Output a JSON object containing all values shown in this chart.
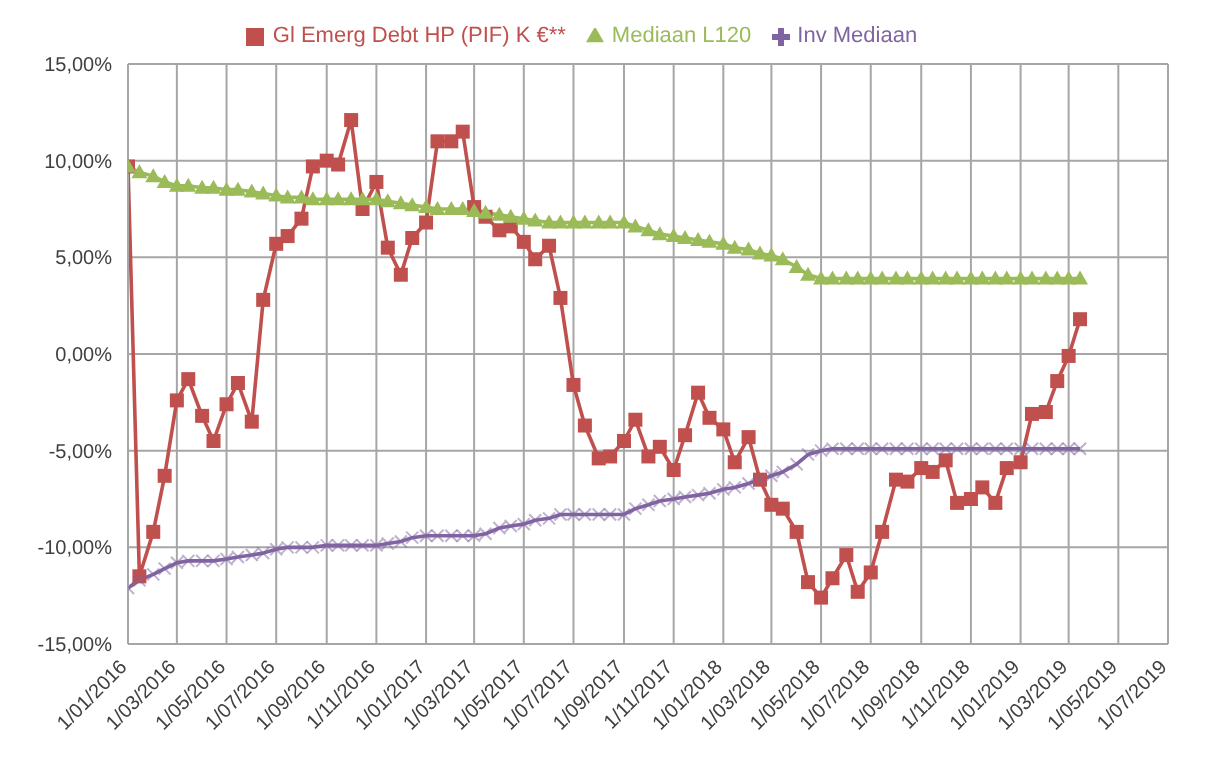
{
  "chart_data": {
    "type": "line",
    "legend": "top",
    "grid": true,
    "line_style": "solid",
    "x": [
      "2016-01-01",
      "2016-01-15",
      "2016-02-01",
      "2016-02-15",
      "2016-03-01",
      "2016-03-15",
      "2016-04-01",
      "2016-04-15",
      "2016-05-01",
      "2016-05-15",
      "2016-06-01",
      "2016-06-15",
      "2016-07-01",
      "2016-07-15",
      "2016-08-01",
      "2016-08-15",
      "2016-09-01",
      "2016-09-15",
      "2016-10-01",
      "2016-10-15",
      "2016-11-01",
      "2016-11-15",
      "2016-12-01",
      "2016-12-15",
      "2017-01-01",
      "2017-01-15",
      "2017-02-01",
      "2017-02-15",
      "2017-03-01",
      "2017-03-15",
      "2017-04-01",
      "2017-04-15",
      "2017-05-01",
      "2017-05-15",
      "2017-06-01",
      "2017-06-15",
      "2017-07-01",
      "2017-07-15",
      "2017-08-01",
      "2017-08-15",
      "2017-09-01",
      "2017-09-15",
      "2017-10-01",
      "2017-10-15",
      "2017-11-01",
      "2017-11-15",
      "2017-12-01",
      "2017-12-15",
      "2018-01-01",
      "2018-01-15",
      "2018-02-01",
      "2018-02-15",
      "2018-03-01",
      "2018-03-15",
      "2018-04-01",
      "2018-04-15",
      "2018-05-01",
      "2018-05-15",
      "2018-06-01",
      "2018-06-15",
      "2018-07-01",
      "2018-07-15",
      "2018-08-01",
      "2018-08-15",
      "2018-09-01",
      "2018-09-15",
      "2018-10-01",
      "2018-10-15",
      "2018-11-01",
      "2018-11-15",
      "2018-12-01",
      "2018-12-15",
      "2019-01-01",
      "2019-01-15",
      "2019-02-01",
      "2019-02-15",
      "2019-03-01",
      "2019-03-15"
    ],
    "series": [
      {
        "name": "Gl Emerg Debt HP (PIF) K €**",
        "color": "#c0504d",
        "marker": "square",
        "values": [
          9.7,
          -11.5,
          -9.2,
          -6.3,
          -2.4,
          -1.3,
          -3.2,
          -4.5,
          -2.6,
          -1.5,
          -3.5,
          2.8,
          5.7,
          6.1,
          7.0,
          9.7,
          10.0,
          9.8,
          12.1,
          7.5,
          8.9,
          5.5,
          4.1,
          6.0,
          6.8,
          11.0,
          11.0,
          11.5,
          7.6,
          7.1,
          6.4,
          6.6,
          5.8,
          4.9,
          5.6,
          2.9,
          -1.6,
          -3.7,
          -5.4,
          -5.3,
          -4.5,
          -3.4,
          -5.3,
          -4.8,
          -6.0,
          -4.2,
          -2.0,
          -3.3,
          -3.9,
          -5.6,
          -4.3,
          -6.5,
          -7.8,
          -8.0,
          -9.2,
          -11.8,
          -12.6,
          -11.6,
          -10.4,
          -12.3,
          -11.3,
          -9.2,
          -6.5,
          -6.6,
          -5.9,
          -6.1,
          -5.5,
          -7.7,
          -7.5,
          -6.9,
          -7.7,
          -5.9,
          -5.6,
          -3.1,
          -3.0,
          -1.4,
          -0.1,
          1.8
        ]
      },
      {
        "name": "Mediaan L120",
        "color": "#9bbb59",
        "marker": "triangle",
        "values": [
          9.7,
          9.4,
          9.2,
          8.9,
          8.7,
          8.7,
          8.6,
          8.6,
          8.5,
          8.5,
          8.4,
          8.3,
          8.2,
          8.1,
          8.1,
          8.0,
          8.0,
          8.0,
          8.0,
          8.0,
          8.0,
          7.9,
          7.8,
          7.7,
          7.6,
          7.5,
          7.5,
          7.5,
          7.4,
          7.3,
          7.2,
          7.1,
          7.0,
          6.9,
          6.8,
          6.8,
          6.8,
          6.8,
          6.8,
          6.8,
          6.8,
          6.6,
          6.4,
          6.2,
          6.1,
          6.0,
          5.9,
          5.8,
          5.7,
          5.5,
          5.4,
          5.2,
          5.1,
          4.9,
          4.5,
          4.1,
          3.9,
          3.9,
          3.9,
          3.9,
          3.9,
          3.9,
          3.9,
          3.9,
          3.9,
          3.9,
          3.9,
          3.9,
          3.9,
          3.9,
          3.9,
          3.9,
          3.9,
          3.9,
          3.9,
          3.9,
          3.9,
          3.9
        ]
      },
      {
        "name": "Inv Mediaan",
        "color": "#8064a2",
        "marker": "cross",
        "values": [
          -12.1,
          -11.7,
          -11.4,
          -11.1,
          -10.8,
          -10.7,
          -10.7,
          -10.7,
          -10.6,
          -10.5,
          -10.4,
          -10.3,
          -10.1,
          -10.0,
          -10.0,
          -10.0,
          -9.9,
          -9.9,
          -9.9,
          -9.9,
          -9.9,
          -9.8,
          -9.7,
          -9.5,
          -9.4,
          -9.4,
          -9.4,
          -9.4,
          -9.4,
          -9.3,
          -9.0,
          -8.9,
          -8.8,
          -8.6,
          -8.5,
          -8.3,
          -8.3,
          -8.3,
          -8.3,
          -8.3,
          -8.3,
          -8.0,
          -7.8,
          -7.6,
          -7.5,
          -7.4,
          -7.3,
          -7.2,
          -7.0,
          -6.9,
          -6.7,
          -6.5,
          -6.3,
          -6.1,
          -5.7,
          -5.2,
          -5.0,
          -4.9,
          -4.9,
          -4.9,
          -4.9,
          -4.9,
          -4.9,
          -4.9,
          -4.9,
          -4.9,
          -4.9,
          -4.9,
          -4.9,
          -4.9,
          -4.9,
          -4.9,
          -4.9,
          -4.9,
          -4.9,
          -4.9,
          -4.9,
          -4.9
        ]
      }
    ],
    "ylim": [
      -15,
      15
    ],
    "yticks": [
      {
        "value": -15,
        "label": "-15,00%"
      },
      {
        "value": -10,
        "label": "-10,00%"
      },
      {
        "value": -5,
        "label": "-5,00%"
      },
      {
        "value": 0,
        "label": "0,00%"
      },
      {
        "value": 5,
        "label": "5,00%"
      },
      {
        "value": 10,
        "label": "10,00%"
      },
      {
        "value": 15,
        "label": "15,00%"
      }
    ],
    "xlim": [
      "2016-01-01",
      "2019-07-01"
    ],
    "xticks": [
      {
        "value": "2016-01-01",
        "label": "1/01/2016"
      },
      {
        "value": "2016-03-01",
        "label": "1/03/2016"
      },
      {
        "value": "2016-05-01",
        "label": "1/05/2016"
      },
      {
        "value": "2016-07-01",
        "label": "1/07/2016"
      },
      {
        "value": "2016-09-01",
        "label": "1/09/2016"
      },
      {
        "value": "2016-11-01",
        "label": "1/11/2016"
      },
      {
        "value": "2017-01-01",
        "label": "1/01/2017"
      },
      {
        "value": "2017-03-01",
        "label": "1/03/2017"
      },
      {
        "value": "2017-05-01",
        "label": "1/05/2017"
      },
      {
        "value": "2017-07-01",
        "label": "1/07/2017"
      },
      {
        "value": "2017-09-01",
        "label": "1/09/2017"
      },
      {
        "value": "2017-11-01",
        "label": "1/11/2017"
      },
      {
        "value": "2018-01-01",
        "label": "1/01/2018"
      },
      {
        "value": "2018-03-01",
        "label": "1/03/2018"
      },
      {
        "value": "2018-05-01",
        "label": "1/05/2018"
      },
      {
        "value": "2018-07-01",
        "label": "1/07/2018"
      },
      {
        "value": "2018-09-01",
        "label": "1/09/2018"
      },
      {
        "value": "2018-11-01",
        "label": "1/11/2018"
      },
      {
        "value": "2019-01-01",
        "label": "1/01/2019"
      },
      {
        "value": "2019-03-01",
        "label": "1/03/2019"
      },
      {
        "value": "2019-05-01",
        "label": "1/05/2019"
      },
      {
        "value": "2019-07-01",
        "label": "1/07/2019"
      }
    ]
  }
}
